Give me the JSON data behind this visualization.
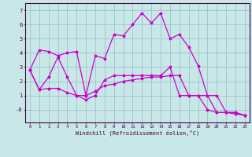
{
  "xlabel": "Windchill (Refroidissement éolien,°C)",
  "x": [
    0,
    1,
    2,
    3,
    4,
    5,
    6,
    7,
    8,
    9,
    10,
    11,
    12,
    13,
    14,
    15,
    16,
    17,
    18,
    19,
    20,
    21,
    22,
    23
  ],
  "line1": [
    2.8,
    4.2,
    4.1,
    3.8,
    4.0,
    4.1,
    1.0,
    3.8,
    3.6,
    5.3,
    5.2,
    6.0,
    6.8,
    6.1,
    6.8,
    5.0,
    5.3,
    4.4,
    3.1,
    1.0,
    1.0,
    -0.2,
    -0.2,
    -0.4
  ],
  "line2": [
    2.8,
    1.4,
    1.5,
    1.5,
    1.2,
    1.0,
    1.0,
    1.3,
    1.7,
    1.8,
    2.0,
    2.1,
    2.2,
    2.3,
    2.3,
    2.4,
    2.4,
    1.0,
    1.0,
    0.0,
    -0.2,
    -0.2,
    -0.3,
    -0.4
  ],
  "line3": [
    2.8,
    1.4,
    2.3,
    3.7,
    2.3,
    1.0,
    0.7,
    1.0,
    2.1,
    2.4,
    2.4,
    2.4,
    2.4,
    2.4,
    2.4,
    3.0,
    1.0,
    1.0,
    1.0,
    1.0,
    -0.2,
    -0.2,
    -0.2,
    -0.4
  ],
  "color": "#cc00cc",
  "bg_color": "#c8e8e8",
  "grid_color": "#9ab8c8",
  "ylim": [
    -0.9,
    7.5
  ],
  "xlim": [
    -0.5,
    23.5
  ],
  "yticks": [
    0,
    1,
    2,
    3,
    4,
    5,
    6,
    7
  ],
  "ytick_labels": [
    "-0",
    "1",
    "2",
    "3",
    "4",
    "5",
    "6",
    "7"
  ]
}
